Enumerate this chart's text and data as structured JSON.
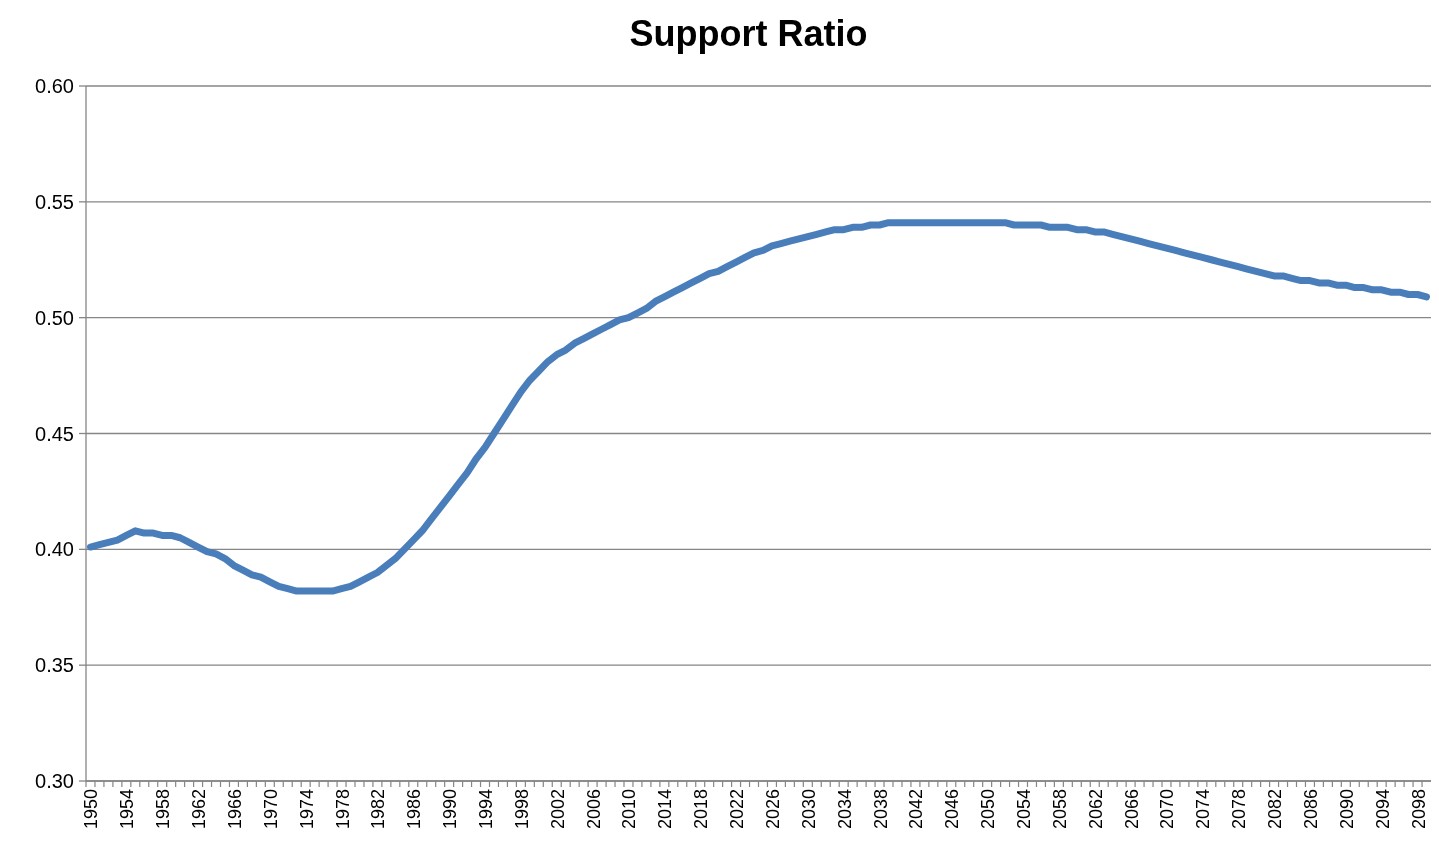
{
  "chart_data": {
    "type": "line",
    "title": "Support Ratio",
    "categories": [
      "1950",
      null,
      null,
      null,
      "1954",
      null,
      null,
      null,
      "1958",
      null,
      null,
      null,
      "1962",
      null,
      null,
      null,
      "1966",
      null,
      null,
      null,
      "1970",
      null,
      null,
      null,
      "1974",
      null,
      null,
      null,
      "1978",
      null,
      null,
      null,
      "1982",
      null,
      null,
      null,
      "1986",
      null,
      null,
      null,
      "1990",
      null,
      null,
      null,
      "1994",
      null,
      null,
      null,
      "1998",
      null,
      null,
      null,
      "2002",
      null,
      null,
      null,
      "2006",
      null,
      null,
      null,
      "2010",
      null,
      null,
      null,
      "2014",
      null,
      null,
      null,
      "2018",
      null,
      null,
      null,
      "2022",
      null,
      null,
      null,
      "2026",
      null,
      null,
      null,
      "2030",
      null,
      null,
      null,
      "2034",
      null,
      null,
      null,
      "2038",
      null,
      null,
      null,
      "2042",
      null,
      null,
      null,
      "2046",
      null,
      null,
      null,
      "2050",
      null,
      null,
      null,
      "2054",
      null,
      null,
      null,
      "2058",
      null,
      null,
      null,
      "2062",
      null,
      null,
      null,
      "2066",
      null,
      null,
      null,
      "2070",
      null,
      null,
      null,
      "2074",
      null,
      null,
      null,
      "2078",
      null,
      null,
      null,
      "2082",
      null,
      null,
      null,
      "2086",
      null,
      null,
      null,
      "2090",
      null,
      null,
      null,
      "2094",
      null,
      null,
      null,
      "2098",
      null
    ],
    "series": [
      {
        "color": "#4a7ebb",
        "values": [
          0.401,
          0.402,
          0.403,
          0.404,
          0.406,
          0.408,
          0.407,
          0.407,
          0.406,
          0.406,
          0.405,
          0.403,
          0.401,
          0.399,
          0.398,
          0.396,
          0.393,
          0.391,
          0.389,
          0.388,
          0.386,
          0.384,
          0.383,
          0.382,
          0.382,
          0.382,
          0.382,
          0.382,
          0.383,
          0.384,
          0.386,
          0.388,
          0.39,
          0.393,
          0.396,
          0.4,
          0.404,
          0.408,
          0.413,
          0.418,
          0.423,
          0.428,
          0.433,
          0.439,
          0.444,
          0.45,
          0.456,
          0.462,
          0.468,
          0.473,
          0.477,
          0.481,
          0.484,
          0.486,
          0.489,
          0.491,
          0.493,
          0.495,
          0.497,
          0.499,
          0.5,
          0.502,
          0.504,
          0.507,
          0.509,
          0.511,
          0.513,
          0.515,
          0.517,
          0.519,
          0.52,
          0.522,
          0.524,
          0.526,
          0.528,
          0.529,
          0.531,
          0.532,
          0.533,
          0.534,
          0.535,
          0.536,
          0.537,
          0.538,
          0.538,
          0.539,
          0.539,
          0.54,
          0.54,
          0.541,
          0.541,
          0.541,
          0.541,
          0.541,
          0.541,
          0.541,
          0.541,
          0.541,
          0.541,
          0.541,
          0.541,
          0.541,
          0.541,
          0.54,
          0.54,
          0.54,
          0.54,
          0.539,
          0.539,
          0.539,
          0.538,
          0.538,
          0.537,
          0.537,
          0.536,
          0.535,
          0.534,
          0.533,
          0.532,
          0.531,
          0.53,
          0.529,
          0.528,
          0.527,
          0.526,
          0.525,
          0.524,
          0.523,
          0.522,
          0.521,
          0.52,
          0.519,
          0.518,
          0.518,
          0.517,
          0.516,
          0.516,
          0.515,
          0.515,
          0.514,
          0.514,
          0.513,
          0.513,
          0.512,
          0.512,
          0.511,
          0.511,
          0.51,
          0.51,
          0.509
        ]
      }
    ],
    "ylim": [
      0.3,
      0.6
    ],
    "yticks": [
      {
        "value": 0.3,
        "label": "0.30"
      },
      {
        "value": 0.35,
        "label": "0.35"
      },
      {
        "value": 0.4,
        "label": "0.40"
      },
      {
        "value": 0.45,
        "label": "0.45"
      },
      {
        "value": 0.5,
        "label": "0.50"
      },
      {
        "value": 0.55,
        "label": "0.55"
      },
      {
        "value": 0.6,
        "label": "0.60"
      }
    ],
    "grid": "y",
    "marker": "none",
    "line_style": "solid"
  }
}
